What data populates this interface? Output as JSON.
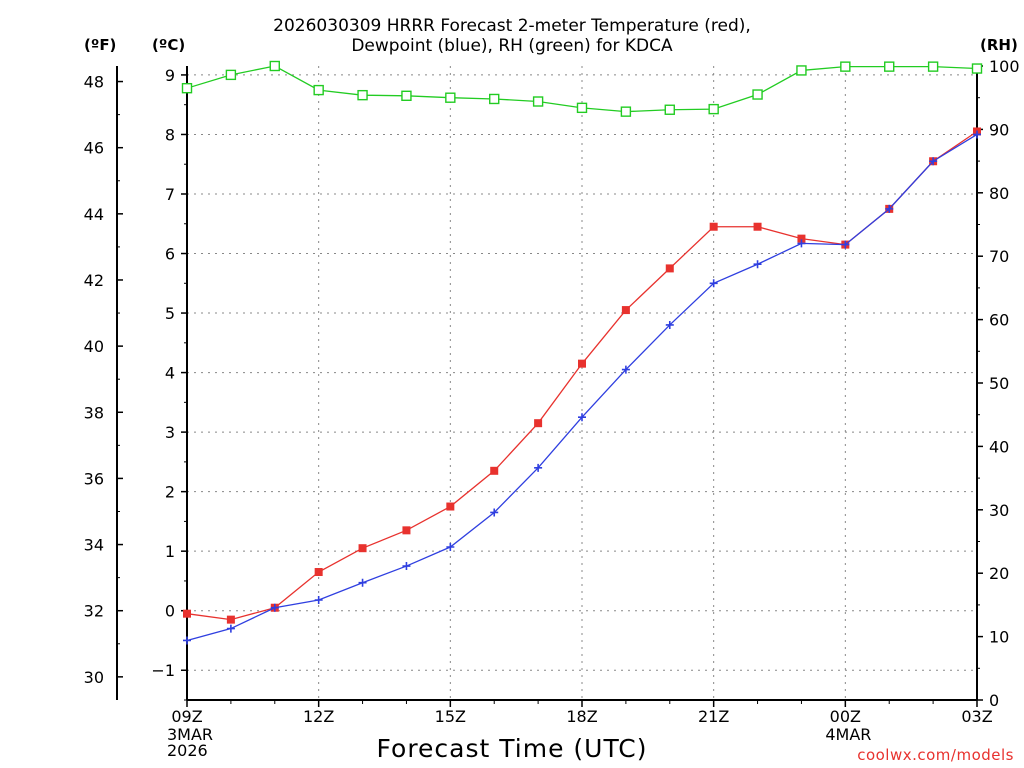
{
  "chart_data": {
    "type": "line",
    "title_line1": "2026030309 HRRR Forecast 2-meter Temperature (red),",
    "title_line2": "Dewpoint (blue), RH (green) for KDCA",
    "xlabel": "Forecast Time (UTC)",
    "left_outer_unit": "(ºF)",
    "left_inner_unit": "(ºC)",
    "right_unit": "(RH)",
    "credit": "coolwx.com/models",
    "x_hours": [
      0,
      1,
      2,
      3,
      4,
      5,
      6,
      7,
      8,
      9,
      10,
      11,
      12,
      13,
      14,
      15,
      16,
      17,
      18
    ],
    "xlim": [
      0,
      18
    ],
    "x_ticks": [
      {
        "hour": 0,
        "label": "09Z"
      },
      {
        "hour": 3,
        "label": "12Z"
      },
      {
        "hour": 6,
        "label": "15Z"
      },
      {
        "hour": 9,
        "label": "18Z"
      },
      {
        "hour": 12,
        "label": "21Z"
      },
      {
        "hour": 15,
        "label": "00Z"
      },
      {
        "hour": 18,
        "label": "03Z"
      }
    ],
    "date_labels": [
      {
        "hour": 0,
        "lines": [
          "3MAR",
          "2026"
        ]
      },
      {
        "hour": 15,
        "lines": [
          "4MAR"
        ]
      }
    ],
    "celsius_ylim": [
      -1.5,
      9.15
    ],
    "celsius_ticks": [
      -1,
      0,
      1,
      2,
      3,
      4,
      5,
      6,
      7,
      8,
      9
    ],
    "fahrenheit_ticks": [
      30,
      32,
      34,
      36,
      38,
      40,
      42,
      44,
      46,
      48
    ],
    "rh_ylim": [
      0,
      100
    ],
    "rh_ticks": [
      0,
      10,
      20,
      30,
      40,
      50,
      60,
      70,
      80,
      90,
      100
    ],
    "series": [
      {
        "name": "Temperature",
        "color": "#e8322e",
        "marker": "filled-square",
        "axis": "celsius",
        "values": [
          -0.05,
          -0.15,
          0.05,
          0.65,
          1.05,
          1.35,
          1.75,
          2.35,
          3.15,
          4.15,
          5.05,
          5.75,
          6.45,
          6.45,
          6.25,
          6.15,
          6.75,
          7.55,
          8.05
        ]
      },
      {
        "name": "Dewpoint",
        "color": "#2f3fe0",
        "marker": "plus",
        "axis": "celsius",
        "values": [
          -0.5,
          -0.3,
          0.05,
          0.18,
          0.47,
          0.75,
          1.07,
          1.65,
          2.4,
          3.25,
          4.05,
          4.8,
          5.5,
          5.82,
          6.17,
          6.15,
          6.75,
          7.55,
          8.0
        ]
      },
      {
        "name": "RH",
        "color": "#22cc22",
        "marker": "open-square",
        "axis": "rh",
        "values": [
          96.5,
          98.6,
          100,
          96.2,
          95.4,
          95.3,
          95.0,
          94.8,
          94.4,
          93.4,
          92.8,
          93.1,
          93.2,
          95.5,
          99.3,
          99.9,
          99.9,
          99.9,
          99.6
        ]
      }
    ],
    "grid": true
  }
}
